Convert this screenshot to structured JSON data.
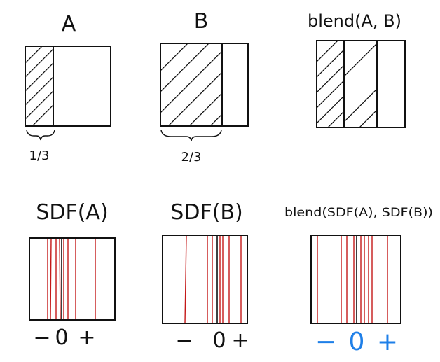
{
  "colors": {
    "ink": "#111111",
    "sdf_line": "#c41818",
    "axis_blue": "#1e7fe8"
  },
  "top_row": {
    "a": {
      "title": "A",
      "brace_label": "1/3"
    },
    "b": {
      "title": "B",
      "brace_label": "2/3"
    },
    "blend": {
      "title": "blend(A, B)"
    }
  },
  "bottom_row": {
    "sdf_a": {
      "title": "SDF(A)",
      "axis": {
        "minus": "−",
        "zero": "0",
        "plus": "+"
      }
    },
    "sdf_b": {
      "title": "SDF(B)",
      "axis": {
        "minus": "−",
        "zero": "0",
        "plus": "+"
      }
    },
    "blend_sdf": {
      "title": "blend(SDF(A), SDF(B))",
      "axis": {
        "minus": "−",
        "zero": "0",
        "plus": "+"
      }
    }
  }
}
